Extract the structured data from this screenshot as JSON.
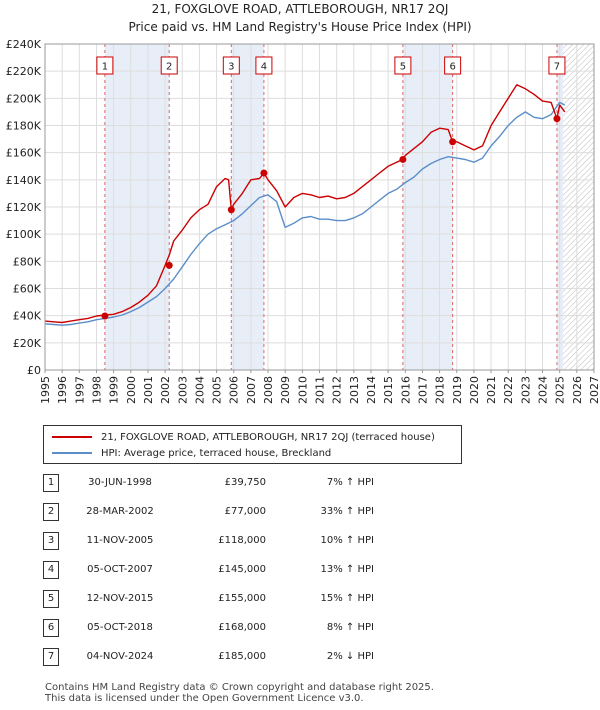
{
  "title_line1": "21, FOXGLOVE ROAD, ATTLEBOROUGH, NR17 2QJ",
  "title_line2": "Price paid vs. HM Land Registry's House Price Index (HPI)",
  "legend": {
    "property": "21, FOXGLOVE ROAD, ATTLEBOROUGH, NR17 2QJ (terraced house)",
    "hpi": "HPI: Average price, terraced house, Breckland"
  },
  "colors": {
    "property": "#cc0000",
    "hpi": "#5b8ec9",
    "band": "#e8eef8"
  },
  "transactions": [
    {
      "num": "1",
      "date": "30-JUN-1998",
      "price": "£39,750",
      "hpi": "7% ↑ HPI"
    },
    {
      "num": "2",
      "date": "28-MAR-2002",
      "price": "£77,000",
      "hpi": "33% ↑ HPI"
    },
    {
      "num": "3",
      "date": "11-NOV-2005",
      "price": "£118,000",
      "hpi": "10% ↑ HPI"
    },
    {
      "num": "4",
      "date": "05-OCT-2007",
      "price": "£145,000",
      "hpi": "13% ↑ HPI"
    },
    {
      "num": "5",
      "date": "12-NOV-2015",
      "price": "£155,000",
      "hpi": "15% ↑ HPI"
    },
    {
      "num": "6",
      "date": "05-OCT-2018",
      "price": "£168,000",
      "hpi": "8% ↑ HPI"
    },
    {
      "num": "7",
      "date": "04-NOV-2024",
      "price": "£185,000",
      "hpi": "2% ↓ HPI"
    }
  ],
  "footer_line1": "Contains HM Land Registry data © Crown copyright and database right 2025.",
  "footer_line2": "This data is licensed under the Open Government Licence v3.0.",
  "chart_data": {
    "type": "line",
    "title": "21, FOXGLOVE ROAD, ATTLEBOROUGH, NR17 2QJ",
    "subtitle": "Price paid vs. HM Land Registry's House Price Index (HPI)",
    "xlabel": "",
    "ylabel": "",
    "xlim": [
      1995,
      2027
    ],
    "ylim": [
      0,
      240000
    ],
    "x_ticks": [
      1995,
      1996,
      1997,
      1998,
      1999,
      2000,
      2001,
      2002,
      2003,
      2004,
      2005,
      2006,
      2007,
      2008,
      2009,
      2010,
      2011,
      2012,
      2013,
      2014,
      2015,
      2016,
      2017,
      2018,
      2019,
      2020,
      2021,
      2022,
      2023,
      2024,
      2025,
      2026,
      2027
    ],
    "y_ticks": [
      0,
      20000,
      40000,
      60000,
      80000,
      100000,
      120000,
      140000,
      160000,
      180000,
      200000,
      220000,
      240000
    ],
    "y_tick_labels": [
      "£0",
      "£20K",
      "£40K",
      "£60K",
      "£80K",
      "£100K",
      "£120K",
      "£140K",
      "£160K",
      "£180K",
      "£200K",
      "£220K",
      "£240K"
    ],
    "grid": true,
    "legend_position": "below",
    "future_hatch_start": 2025.2,
    "series": [
      {
        "name": "21, FOXGLOVE ROAD, ATTLEBOROUGH, NR17 2QJ (terraced house)",
        "color": "#cc0000",
        "x": [
          1995,
          1995.5,
          1996,
          1996.5,
          1997,
          1997.5,
          1998,
          1998.5,
          1999,
          1999.5,
          2000,
          2000.5,
          2001,
          2001.5,
          2002,
          2002.25,
          2002.5,
          2003,
          2003.5,
          2004,
          2004.5,
          2005,
          2005.5,
          2005.7,
          2005.86,
          2006,
          2006.5,
          2007,
          2007.5,
          2007.76,
          2008,
          2008.5,
          2009,
          2009.5,
          2010,
          2010.5,
          2011,
          2011.5,
          2012,
          2012.5,
          2013,
          2013.5,
          2014,
          2014.5,
          2015,
          2015.5,
          2015.86,
          2016,
          2016.5,
          2017,
          2017.5,
          2018,
          2018.5,
          2018.76,
          2019,
          2019.5,
          2020,
          2020.5,
          2021,
          2021.5,
          2022,
          2022.5,
          2023,
          2023.5,
          2024,
          2024.5,
          2024.84,
          2025,
          2025.3
        ],
        "y": [
          36000,
          35500,
          35000,
          36000,
          37000,
          38000,
          39750,
          40500,
          41000,
          43000,
          46000,
          50000,
          55000,
          62000,
          77000,
          85000,
          95000,
          103000,
          112000,
          118000,
          122000,
          135000,
          141000,
          140000,
          118000,
          122000,
          130000,
          140000,
          141000,
          145000,
          140000,
          132000,
          120000,
          127000,
          130000,
          129000,
          127000,
          128000,
          126000,
          127000,
          130000,
          135000,
          140000,
          145000,
          150000,
          153000,
          155000,
          158000,
          163000,
          168000,
          175000,
          178000,
          177000,
          168000,
          168000,
          165000,
          162000,
          165000,
          180000,
          190000,
          200000,
          210000,
          207000,
          203000,
          198000,
          197000,
          185000,
          195000,
          190000
        ]
      },
      {
        "name": "HPI: Average price, terraced house, Breckland",
        "color": "#5b8ec9",
        "x": [
          1995,
          1995.5,
          1996,
          1996.5,
          1997,
          1997.5,
          1998,
          1998.5,
          1999,
          1999.5,
          2000,
          2000.5,
          2001,
          2001.5,
          2002,
          2002.5,
          2003,
          2003.5,
          2004,
          2004.5,
          2005,
          2005.5,
          2006,
          2006.5,
          2007,
          2007.5,
          2008,
          2008.5,
          2009,
          2009.5,
          2010,
          2010.5,
          2011,
          2011.5,
          2012,
          2012.5,
          2013,
          2013.5,
          2014,
          2014.5,
          2015,
          2015.5,
          2016,
          2016.5,
          2017,
          2017.5,
          2018,
          2018.5,
          2019,
          2019.5,
          2020,
          2020.5,
          2021,
          2021.5,
          2022,
          2022.5,
          2023,
          2023.5,
          2024,
          2024.5,
          2025,
          2025.3
        ],
        "y": [
          34000,
          33500,
          33000,
          33500,
          34500,
          35500,
          37000,
          38000,
          39000,
          40500,
          43000,
          46000,
          50000,
          54000,
          60000,
          67000,
          76000,
          85000,
          93000,
          100000,
          104000,
          107000,
          110000,
          115000,
          121000,
          127000,
          129000,
          124000,
          105000,
          108000,
          112000,
          113000,
          111000,
          111000,
          110000,
          110000,
          112000,
          115000,
          120000,
          125000,
          130000,
          133000,
          138000,
          142000,
          148000,
          152000,
          155000,
          157000,
          156000,
          155000,
          153000,
          156000,
          165000,
          172000,
          180000,
          186000,
          190000,
          186000,
          185000,
          188000,
          197000,
          195000
        ]
      }
    ],
    "sales": [
      {
        "label": "1",
        "x": 1998.49,
        "y": 39750
      },
      {
        "label": "2",
        "x": 2002.24,
        "y": 77000
      },
      {
        "label": "3",
        "x": 2005.86,
        "y": 118000
      },
      {
        "label": "4",
        "x": 2007.76,
        "y": 145000
      },
      {
        "label": "5",
        "x": 2015.86,
        "y": 155000
      },
      {
        "label": "6",
        "x": 2018.76,
        "y": 168000
      },
      {
        "label": "7",
        "x": 2024.84,
        "y": 185000
      }
    ],
    "sale_bands": [
      [
        1998.49,
        2002.24
      ],
      [
        2005.86,
        2007.76
      ],
      [
        2015.86,
        2018.76
      ],
      [
        2024.84,
        2025.2
      ]
    ]
  }
}
